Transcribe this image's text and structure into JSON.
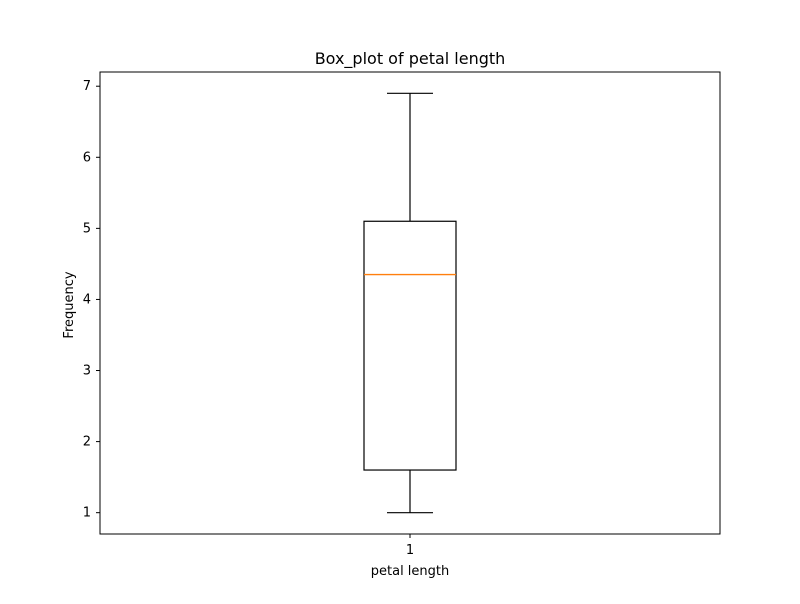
{
  "chart_data": {
    "type": "box",
    "title": "Box_plot of petal length",
    "xlabel": "petal length",
    "ylabel": "Frequency",
    "categories": [
      "1"
    ],
    "boxes": [
      {
        "category": "1",
        "min": 1.0,
        "q1": 1.6,
        "median": 4.35,
        "q3": 5.1,
        "max": 6.9
      }
    ],
    "ylim": [
      0.7,
      7.2
    ],
    "yticks": [
      1,
      2,
      3,
      4,
      5,
      6,
      7
    ],
    "grid": false,
    "colors": {
      "box": "#000000",
      "median": "#ff7f0e",
      "axes": "#000000",
      "background": "#ffffff"
    }
  }
}
